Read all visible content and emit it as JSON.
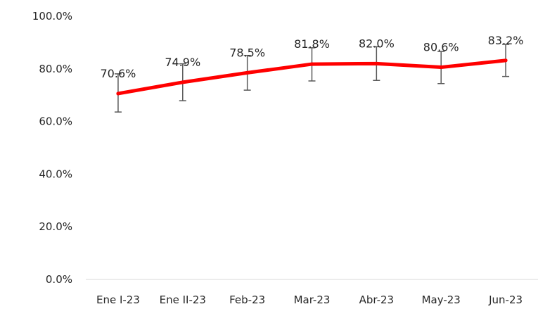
{
  "chart_data": {
    "type": "line",
    "categories": [
      "Ene I-23",
      "Ene II-23",
      "Feb-23",
      "Mar-23",
      "Abr-23",
      "May-23",
      "Jun-23"
    ],
    "series": [
      {
        "values": [
          70.6,
          74.9,
          78.5,
          81.8,
          82.0,
          80.6,
          83.2
        ],
        "error_low": [
          63.6,
          67.9,
          71.9,
          75.4,
          75.6,
          74.4,
          77.1
        ],
        "error_high": [
          78.1,
          81.9,
          85.1,
          88.0,
          88.4,
          86.6,
          89.3
        ],
        "data_labels": [
          "70.6%",
          "74.9%",
          "78.5%",
          "81.8%",
          "82.0%",
          "80.6%",
          "83.2%"
        ],
        "color": "#ff0000"
      }
    ],
    "y_ticks": [
      0,
      20,
      40,
      60,
      80,
      100
    ],
    "y_tick_labels": [
      "0.0%",
      "20.0%",
      "40.0%",
      "60.0%",
      "80.0%",
      "100.0%"
    ],
    "ylim": [
      0,
      100
    ],
    "grid": false,
    "legend": "none",
    "colors": {
      "line": "#ff0000",
      "error_bar": "#595959",
      "axis": "#d9d9d9",
      "text": "#262626"
    }
  }
}
